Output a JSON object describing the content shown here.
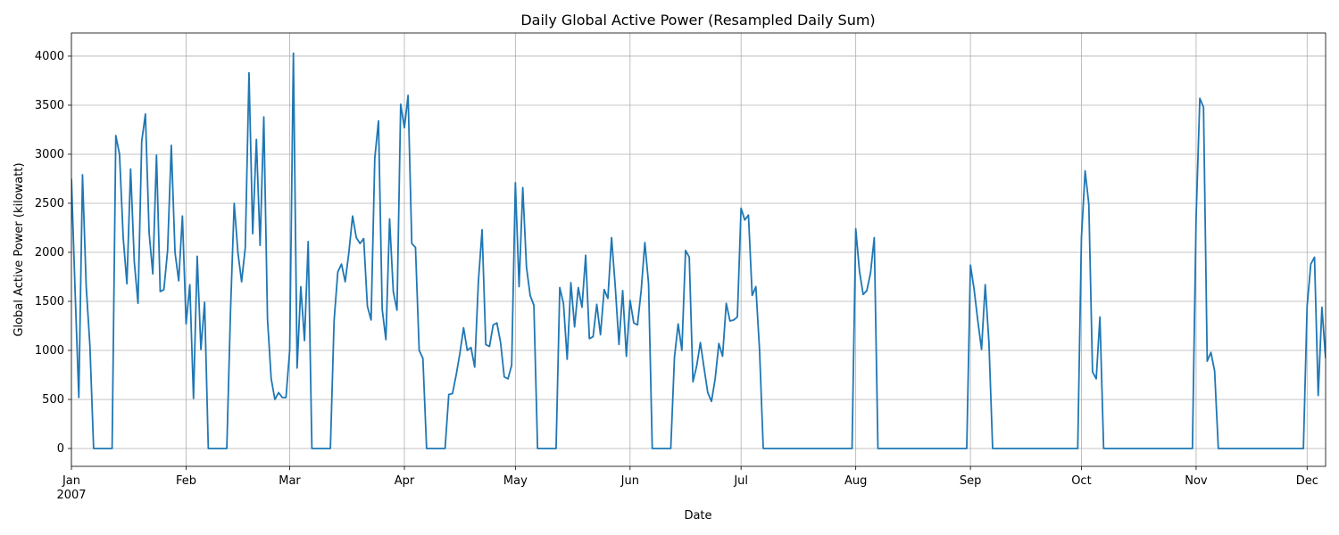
{
  "chart_data": {
    "type": "line",
    "title": "Daily Global Active Power (Resampled Daily Sum)",
    "xlabel": "Date",
    "ylabel": "Global Active Power (kilowatt)",
    "color": "#1f77b4",
    "grid": true,
    "xlim": [
      "2007-01-01",
      "2007-12-06"
    ],
    "xticks": [
      {
        "value": "2007-01-01",
        "label": "Jan\n2007"
      },
      {
        "value": "2007-02-01",
        "label": "Feb"
      },
      {
        "value": "2007-03-01",
        "label": "Mar"
      },
      {
        "value": "2007-04-01",
        "label": "Apr"
      },
      {
        "value": "2007-05-01",
        "label": "May"
      },
      {
        "value": "2007-06-01",
        "label": "Jun"
      },
      {
        "value": "2007-07-01",
        "label": "Jul"
      },
      {
        "value": "2007-08-01",
        "label": "Aug"
      },
      {
        "value": "2007-09-01",
        "label": "Sep"
      },
      {
        "value": "2007-10-01",
        "label": "Oct"
      },
      {
        "value": "2007-11-01",
        "label": "Nov"
      },
      {
        "value": "2007-12-01",
        "label": "Dec"
      }
    ],
    "ylim": [
      -182,
      4236
    ],
    "yticks": [
      0,
      500,
      1000,
      1500,
      2000,
      2500,
      3000,
      3500,
      4000
    ],
    "x": [
      "2007-01-01",
      "2007-01-02",
      "2007-01-03",
      "2007-01-04",
      "2007-01-05",
      "2007-01-06",
      "2007-01-07",
      "2007-01-08",
      "2007-01-09",
      "2007-01-10",
      "2007-01-11",
      "2007-01-12",
      "2007-01-13",
      "2007-01-14",
      "2007-01-15",
      "2007-01-16",
      "2007-01-17",
      "2007-01-18",
      "2007-01-19",
      "2007-01-20",
      "2007-01-21",
      "2007-01-22",
      "2007-01-23",
      "2007-01-24",
      "2007-01-25",
      "2007-01-26",
      "2007-01-27",
      "2007-01-28",
      "2007-01-29",
      "2007-01-30",
      "2007-01-31",
      "2007-02-01",
      "2007-02-02",
      "2007-02-03",
      "2007-02-04",
      "2007-02-05",
      "2007-02-06",
      "2007-02-07",
      "2007-02-08",
      "2007-02-09",
      "2007-02-10",
      "2007-02-11",
      "2007-02-12",
      "2007-02-13",
      "2007-02-14",
      "2007-02-15",
      "2007-02-16",
      "2007-02-17",
      "2007-02-18",
      "2007-02-19",
      "2007-02-20",
      "2007-02-21",
      "2007-02-22",
      "2007-02-23",
      "2007-02-24",
      "2007-02-25",
      "2007-02-26",
      "2007-02-27",
      "2007-02-28",
      "2007-03-01",
      "2007-03-02",
      "2007-03-03",
      "2007-03-04",
      "2007-03-05",
      "2007-03-06",
      "2007-03-07",
      "2007-03-08",
      "2007-03-09",
      "2007-03-10",
      "2007-03-11",
      "2007-03-12",
      "2007-03-13",
      "2007-03-14",
      "2007-03-15",
      "2007-03-16",
      "2007-03-17",
      "2007-03-18",
      "2007-03-19",
      "2007-03-20",
      "2007-03-21",
      "2007-03-22",
      "2007-03-23",
      "2007-03-24",
      "2007-03-25",
      "2007-03-26",
      "2007-03-27",
      "2007-03-28",
      "2007-03-29",
      "2007-03-30",
      "2007-03-31",
      "2007-04-01",
      "2007-04-02",
      "2007-04-03",
      "2007-04-04",
      "2007-04-05",
      "2007-04-06",
      "2007-04-07",
      "2007-04-08",
      "2007-04-09",
      "2007-04-10",
      "2007-04-11",
      "2007-04-12",
      "2007-04-13",
      "2007-04-14",
      "2007-04-15",
      "2007-04-16",
      "2007-04-17",
      "2007-04-18",
      "2007-04-19",
      "2007-04-20",
      "2007-04-21",
      "2007-04-22",
      "2007-04-23",
      "2007-04-24",
      "2007-04-25",
      "2007-04-26",
      "2007-04-27",
      "2007-04-28",
      "2007-04-29",
      "2007-04-30",
      "2007-05-01",
      "2007-05-02",
      "2007-05-03",
      "2007-05-04",
      "2007-05-05",
      "2007-05-06",
      "2007-05-07",
      "2007-05-08",
      "2007-05-09",
      "2007-05-10",
      "2007-05-11",
      "2007-05-12",
      "2007-05-13",
      "2007-05-14",
      "2007-05-15",
      "2007-05-16",
      "2007-05-17",
      "2007-05-18",
      "2007-05-19",
      "2007-05-20",
      "2007-05-21",
      "2007-05-22",
      "2007-05-23",
      "2007-05-24",
      "2007-05-25",
      "2007-05-26",
      "2007-05-27",
      "2007-05-28",
      "2007-05-29",
      "2007-05-30",
      "2007-05-31",
      "2007-06-01",
      "2007-06-02",
      "2007-06-03",
      "2007-06-04",
      "2007-06-05",
      "2007-06-06",
      "2007-06-07",
      "2007-06-08",
      "2007-06-09",
      "2007-06-10",
      "2007-06-11",
      "2007-06-12",
      "2007-06-13",
      "2007-06-14",
      "2007-06-15",
      "2007-06-16",
      "2007-06-17",
      "2007-06-18",
      "2007-06-19",
      "2007-06-20",
      "2007-06-21",
      "2007-06-22",
      "2007-06-23",
      "2007-06-24",
      "2007-06-25",
      "2007-06-26",
      "2007-06-27",
      "2007-06-28",
      "2007-06-29",
      "2007-06-30",
      "2007-07-01",
      "2007-07-02",
      "2007-07-03",
      "2007-07-04",
      "2007-07-05",
      "2007-07-06",
      "2007-07-07",
      "2007-07-08",
      "2007-07-09",
      "2007-07-10",
      "2007-07-11",
      "2007-07-12",
      "2007-07-13",
      "2007-07-14",
      "2007-07-15",
      "2007-07-16",
      "2007-07-17",
      "2007-07-18",
      "2007-07-19",
      "2007-07-20",
      "2007-07-21",
      "2007-07-22",
      "2007-07-23",
      "2007-07-24",
      "2007-07-25",
      "2007-07-26",
      "2007-07-27",
      "2007-07-28",
      "2007-07-29",
      "2007-07-30",
      "2007-07-31",
      "2007-08-01",
      "2007-08-02",
      "2007-08-03",
      "2007-08-04",
      "2007-08-05",
      "2007-08-06",
      "2007-08-07",
      "2007-08-08",
      "2007-08-09",
      "2007-08-10",
      "2007-08-11",
      "2007-08-12",
      "2007-08-13",
      "2007-08-14",
      "2007-08-15",
      "2007-08-16",
      "2007-08-17",
      "2007-08-18",
      "2007-08-19",
      "2007-08-20",
      "2007-08-21",
      "2007-08-22",
      "2007-08-23",
      "2007-08-24",
      "2007-08-25",
      "2007-08-26",
      "2007-08-27",
      "2007-08-28",
      "2007-08-29",
      "2007-08-30",
      "2007-08-31",
      "2007-09-01",
      "2007-09-02",
      "2007-09-03",
      "2007-09-04",
      "2007-09-05",
      "2007-09-06",
      "2007-09-07",
      "2007-09-08",
      "2007-09-09",
      "2007-09-10",
      "2007-09-11",
      "2007-09-12",
      "2007-09-13",
      "2007-09-14",
      "2007-09-15",
      "2007-09-16",
      "2007-09-17",
      "2007-09-18",
      "2007-09-19",
      "2007-09-20",
      "2007-09-21",
      "2007-09-22",
      "2007-09-23",
      "2007-09-24",
      "2007-09-25",
      "2007-09-26",
      "2007-09-27",
      "2007-09-28",
      "2007-09-29",
      "2007-09-30",
      "2007-10-01",
      "2007-10-02",
      "2007-10-03",
      "2007-10-04",
      "2007-10-05",
      "2007-10-06",
      "2007-10-07",
      "2007-10-08",
      "2007-10-09",
      "2007-10-10",
      "2007-10-11",
      "2007-10-12",
      "2007-10-13",
      "2007-10-14",
      "2007-10-15",
      "2007-10-16",
      "2007-10-17",
      "2007-10-18",
      "2007-10-19",
      "2007-10-20",
      "2007-10-21",
      "2007-10-22",
      "2007-10-23",
      "2007-10-24",
      "2007-10-25",
      "2007-10-26",
      "2007-10-27",
      "2007-10-28",
      "2007-10-29",
      "2007-10-30",
      "2007-10-31",
      "2007-11-01",
      "2007-11-02",
      "2007-11-03",
      "2007-11-04",
      "2007-11-05",
      "2007-11-06",
      "2007-11-07",
      "2007-11-08",
      "2007-11-09",
      "2007-11-10",
      "2007-11-11",
      "2007-11-12",
      "2007-11-13",
      "2007-11-14",
      "2007-11-15",
      "2007-11-16",
      "2007-11-17",
      "2007-11-18",
      "2007-11-19",
      "2007-11-20",
      "2007-11-21",
      "2007-11-22",
      "2007-11-23",
      "2007-11-24",
      "2007-11-25",
      "2007-11-26",
      "2007-11-27",
      "2007-11-28",
      "2007-11-29",
      "2007-11-30",
      "2007-12-01",
      "2007-12-02",
      "2007-12-03",
      "2007-12-04",
      "2007-12-05",
      "2007-12-06"
    ],
    "values": [
      2750,
      1600,
      520,
      2790,
      1650,
      1050,
      0,
      0,
      0,
      0,
      0,
      0,
      3190,
      3000,
      2150,
      1680,
      2850,
      1900,
      1480,
      3130,
      3410,
      2200,
      1780,
      2990,
      1600,
      1620,
      2020,
      3090,
      2000,
      1710,
      2370,
      1270,
      1670,
      510,
      1960,
      1010,
      1490,
      0,
      0,
      0,
      0,
      0,
      0,
      1400,
      2500,
      2000,
      1700,
      2050,
      3830,
      2190,
      3150,
      2070,
      3380,
      1320,
      710,
      500,
      570,
      520,
      520,
      1000,
      4030,
      820,
      1650,
      1100,
      2110,
      0,
      0,
      0,
      0,
      0,
      0,
      1300,
      1800,
      1880,
      1700,
      2000,
      2370,
      2150,
      2090,
      2140,
      1450,
      1310,
      2960,
      3340,
      1420,
      1110,
      2340,
      1600,
      1410,
      3510,
      3270,
      3600,
      2090,
      2050,
      1000,
      920,
      0,
      0,
      0,
      0,
      0,
      0,
      550,
      560,
      750,
      970,
      1230,
      1000,
      1030,
      830,
      1700,
      2230,
      1060,
      1040,
      1260,
      1280,
      1080,
      730,
      710,
      850,
      2710,
      1650,
      2660,
      1850,
      1560,
      1460,
      0,
      0,
      0,
      0,
      0,
      0,
      1640,
      1480,
      910,
      1690,
      1240,
      1640,
      1440,
      1970,
      1120,
      1140,
      1470,
      1160,
      1620,
      1530,
      2150,
      1650,
      1060,
      1610,
      940,
      1510,
      1280,
      1260,
      1610,
      2100,
      1680,
      0,
      0,
      0,
      0,
      0,
      0,
      930,
      1270,
      1000,
      2020,
      1950,
      680,
      840,
      1080,
      820,
      570,
      480,
      710,
      1070,
      940,
      1480,
      1300,
      1310,
      1340,
      2450,
      2330,
      2380,
      1560,
      1650,
      1000,
      0,
      0,
      0,
      0,
      0,
      0,
      0,
      0,
      0,
      0,
      0,
      0,
      0,
      0,
      0,
      0,
      0,
      0,
      0,
      0,
      0,
      0,
      0,
      0,
      0,
      2240,
      1810,
      1570,
      1610,
      1790,
      2150,
      0,
      0,
      0,
      0,
      0,
      0,
      0,
      0,
      0,
      0,
      0,
      0,
      0,
      0,
      0,
      0,
      0,
      0,
      0,
      0,
      0,
      0,
      0,
      0,
      0,
      1870,
      1620,
      1300,
      1010,
      1670,
      1080,
      0,
      0,
      0,
      0,
      0,
      0,
      0,
      0,
      0,
      0,
      0,
      0,
      0,
      0,
      0,
      0,
      0,
      0,
      0,
      0,
      0,
      0,
      0,
      0,
      2150,
      2830,
      2490,
      780,
      710,
      1340,
      0,
      0,
      0,
      0,
      0,
      0,
      0,
      0,
      0,
      0,
      0,
      0,
      0,
      0,
      0,
      0,
      0,
      0,
      0,
      0,
      0,
      0,
      0,
      0,
      0,
      2360,
      3570,
      3480,
      890,
      980,
      790,
      0,
      0,
      0,
      0,
      0,
      0,
      0,
      0,
      0,
      0,
      0,
      0,
      0,
      0,
      0,
      0,
      0,
      0,
      0,
      0,
      0,
      0,
      0,
      0,
      1450,
      1880,
      1950,
      540,
      1440,
      920
    ]
  }
}
